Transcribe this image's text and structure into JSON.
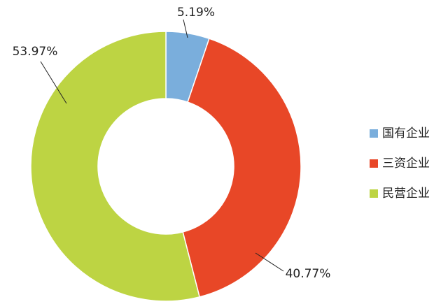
{
  "chart_data": {
    "type": "donut",
    "categories": [
      "国有企业",
      "三资企业",
      "民营企业"
    ],
    "values": [
      5.19,
      40.77,
      53.97
    ],
    "value_labels": [
      "5.19%",
      "40.77%",
      "53.97%"
    ],
    "colors": [
      "#7aaedc",
      "#e84727",
      "#bdd443"
    ],
    "legend": "right"
  }
}
